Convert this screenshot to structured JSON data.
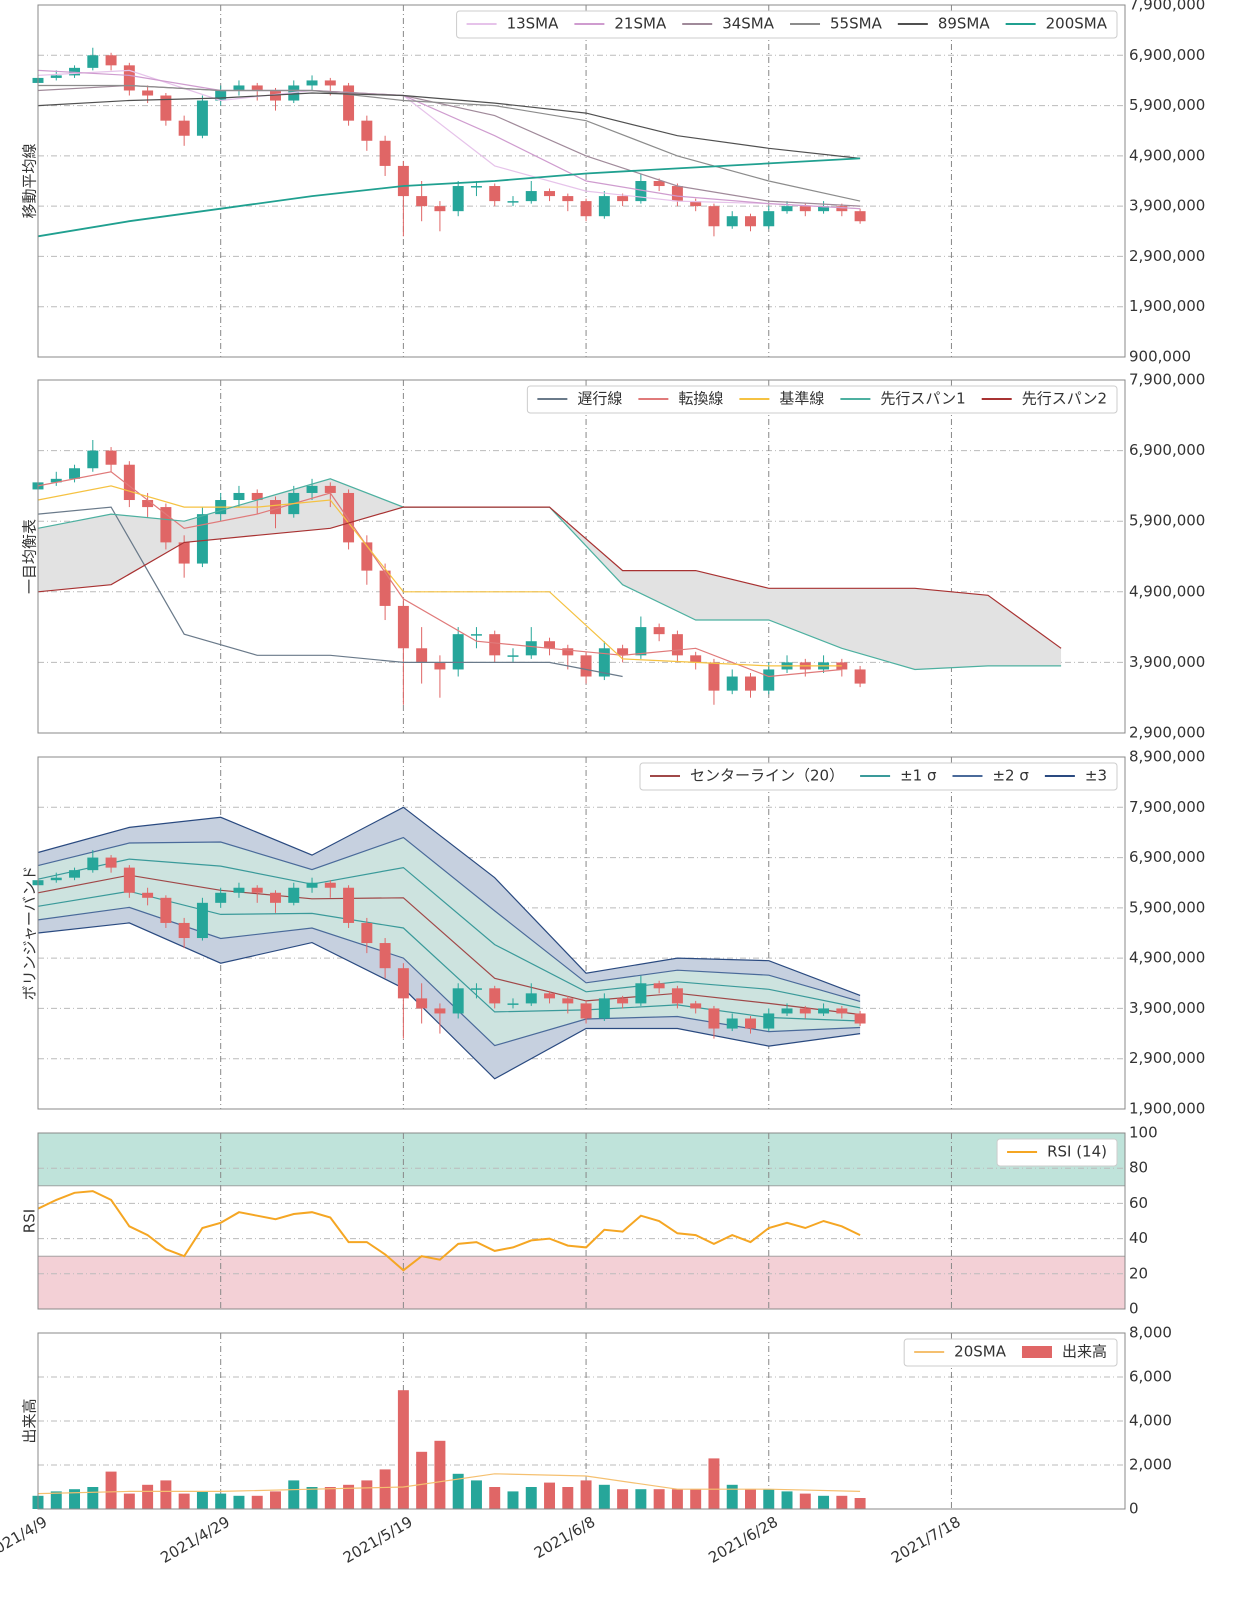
{
  "chart_data": [
    {
      "type": "candlestick",
      "ylabel": "移動平均線",
      "legend": "upper right",
      "ylim": [
        900000,
        7900000
      ],
      "yticks": [
        {
          "value": 900000,
          "label": "900,000"
        },
        {
          "value": 1900000,
          "label": "1,900,000"
        },
        {
          "value": 2900000,
          "label": "2,900,000"
        },
        {
          "value": 3900000,
          "label": "3,900,000"
        },
        {
          "value": 4900000,
          "label": "4,900,000"
        },
        {
          "value": 5900000,
          "label": "5,900,000"
        },
        {
          "value": 6900000,
          "label": "6,900,000"
        },
        {
          "value": 7900000,
          "label": "7,900,000"
        }
      ],
      "candles": {
        "up_color": "#26a69a",
        "down_color": "#e06666",
        "x": [
          0,
          2,
          4,
          6,
          8,
          10,
          12,
          14,
          16,
          18,
          20,
          22,
          24,
          26,
          28,
          30,
          32,
          34,
          36,
          38,
          40,
          42,
          44,
          46,
          48,
          50,
          52,
          54,
          56,
          58,
          60,
          62,
          64,
          66,
          68,
          70,
          72,
          74,
          76,
          78,
          80,
          82,
          84,
          86,
          88,
          90
        ],
        "open": [
          6350000,
          6450000,
          6500000,
          6650000,
          6900000,
          6700000,
          6200000,
          6100000,
          5600000,
          5300000,
          6000000,
          6200000,
          6300000,
          6200000,
          6000000,
          6300000,
          6400000,
          6300000,
          5600000,
          5200000,
          4700000,
          4100000,
          3900000,
          3800000,
          4300000,
          4300000,
          4000000,
          4000000,
          4200000,
          4100000,
          4000000,
          3700000,
          4100000,
          4000000,
          4400000,
          4300000,
          4000000,
          3900000,
          3500000,
          3700000,
          3500000,
          3800000,
          3900000,
          3800000,
          3900000,
          3800000
        ],
        "high": [
          6500000,
          6600000,
          6700000,
          7050000,
          6950000,
          6750000,
          6300000,
          6150000,
          5700000,
          6100000,
          6300000,
          6400000,
          6350000,
          6250000,
          6400000,
          6500000,
          6450000,
          6350000,
          5700000,
          5300000,
          4800000,
          4400000,
          4000000,
          4400000,
          4400000,
          4350000,
          4100000,
          4400000,
          4250000,
          4150000,
          4050000,
          4200000,
          4150000,
          4550000,
          4450000,
          4350000,
          4050000,
          3950000,
          3800000,
          3750000,
          3900000,
          4000000,
          3950000,
          4000000,
          3950000,
          3850000
        ],
        "low": [
          6300000,
          6400000,
          6450000,
          6600000,
          6600000,
          6100000,
          5950000,
          5500000,
          5100000,
          5250000,
          5900000,
          6100000,
          6000000,
          5800000,
          5950000,
          6200000,
          6100000,
          5500000,
          5000000,
          4500000,
          3300000,
          3600000,
          3400000,
          3700000,
          4100000,
          3900000,
          3900000,
          3950000,
          4000000,
          3800000,
          3600000,
          3650000,
          3900000,
          3950000,
          4200000,
          3900000,
          3800000,
          3300000,
          3450000,
          3400000,
          3450000,
          3750000,
          3700000,
          3750000,
          3700000,
          3550000
        ],
        "close": [
          6450000,
          6500000,
          6650000,
          6900000,
          6700000,
          6200000,
          6100000,
          5600000,
          5300000,
          6000000,
          6200000,
          6300000,
          6200000,
          6000000,
          6300000,
          6400000,
          6300000,
          5600000,
          5200000,
          4700000,
          4100000,
          3900000,
          3800000,
          4300000,
          4300000,
          4000000,
          4000000,
          4200000,
          4100000,
          4000000,
          3700000,
          4100000,
          4000000,
          4400000,
          4300000,
          4000000,
          3900000,
          3500000,
          3700000,
          3500000,
          3800000,
          3900000,
          3800000,
          3900000,
          3800000,
          3600000
        ]
      },
      "lines": {
        "x": [
          0,
          10,
          20,
          30,
          40,
          50,
          60,
          70,
          80,
          90
        ],
        "series": [
          {
            "name": "13SMA",
            "color": "#e6c3ea",
            "values": [
              6500000,
              6600000,
              6000000,
              6200000,
              6100000,
              4700000,
              4200000,
              4000000,
              3950000,
              3850000
            ]
          },
          {
            "name": "21SMA",
            "color": "#cf9ccf",
            "values": [
              6600000,
              6500000,
              6200000,
              6200000,
              6100000,
              5300000,
              4400000,
              4100000,
              3950000,
              3850000
            ]
          },
          {
            "name": "34SMA",
            "color": "#a08a9a",
            "values": [
              6200000,
              6300000,
              6200000,
              6200000,
              6100000,
              5700000,
              4900000,
              4300000,
              4000000,
              3900000
            ]
          },
          {
            "name": "55SMA",
            "color": "#8c8c8c",
            "values": [
              6300000,
              6300000,
              6200000,
              6200000,
              6000000,
              5900000,
              5600000,
              4900000,
              4400000,
              4000000
            ]
          },
          {
            "name": "89SMA",
            "color": "#505050",
            "values": [
              5900000,
              6000000,
              6050000,
              6150000,
              6100000,
              5950000,
              5750000,
              5300000,
              5050000,
              4850000
            ]
          },
          {
            "name": "200SMA",
            "color": "#20a090",
            "values": [
              3300000,
              3600000,
              3850000,
              4100000,
              4300000,
              4400000,
              4550000,
              4650000,
              4750000,
              4850000
            ]
          }
        ]
      }
    },
    {
      "type": "candlestick",
      "ylabel": "一目均衡表",
      "legend": "upper right",
      "cloud_color": "#e2e2e2",
      "ylim": [
        2900000,
        7900000
      ],
      "yticks": [
        {
          "value": 2900000,
          "label": "2,900,000"
        },
        {
          "value": 3900000,
          "label": "3,900,000"
        },
        {
          "value": 4900000,
          "label": "4,900,000"
        },
        {
          "value": 5900000,
          "label": "5,900,000"
        },
        {
          "value": 6900000,
          "label": "6,900,000"
        },
        {
          "value": 7900000,
          "label": "7,900,000"
        }
      ],
      "lines": {
        "x": [
          0,
          8,
          16,
          24,
          32,
          40,
          48,
          56,
          64,
          72,
          80,
          88,
          96,
          104,
          112
        ],
        "series": [
          {
            "name": "遅行線",
            "color": "#6a7a8a",
            "values": [
              6000000,
              6100000,
              4300000,
              4000000,
              4000000,
              3900000,
              3900000,
              3900000,
              3700000,
              null,
              null,
              null,
              null,
              null,
              null
            ]
          },
          {
            "name": "転換線",
            "color": "#e07a7a",
            "values": [
              6400000,
              6600000,
              5800000,
              6000000,
              6300000,
              4800000,
              4200000,
              4100000,
              4000000,
              4100000,
              3700000,
              3800000,
              null,
              null,
              null
            ]
          },
          {
            "name": "基準線",
            "color": "#f5c242",
            "values": [
              6200000,
              6400000,
              6100000,
              6100000,
              6200000,
              4900000,
              4900000,
              4900000,
              3950000,
              3900000,
              3850000,
              3850000,
              null,
              null,
              null
            ]
          },
          {
            "name": "先行スパン1",
            "color": "#4db0a0",
            "values": [
              5800000,
              6000000,
              5900000,
              6200000,
              6500000,
              6100000,
              6100000,
              6100000,
              5000000,
              4500000,
              4500000,
              4100000,
              3800000,
              3850000,
              3850000
            ]
          },
          {
            "name": "先行スパン2",
            "color": "#a83232",
            "values": [
              4900000,
              5000000,
              5600000,
              5700000,
              5800000,
              6100000,
              6100000,
              6100000,
              5200000,
              5200000,
              4950000,
              4950000,
              4950000,
              4850000,
              4100000
            ]
          }
        ]
      }
    },
    {
      "type": "bollinger",
      "ylabel": "ボリンジャーバンド",
      "legend": "upper right",
      "ylim": [
        1900000,
        8900000
      ],
      "yticks": [
        {
          "value": 1900000,
          "label": "1,900,000"
        },
        {
          "value": 2900000,
          "label": "2,900,000"
        },
        {
          "value": 3900000,
          "label": "3,900,000"
        },
        {
          "value": 4900000,
          "label": "4,900,000"
        },
        {
          "value": 5900000,
          "label": "5,900,000"
        },
        {
          "value": 6900000,
          "label": "6,900,000"
        },
        {
          "value": 7900000,
          "label": "7,900,000"
        },
        {
          "value": 8900000,
          "label": "8,900,000"
        }
      ],
      "x": [
        0,
        10,
        20,
        30,
        40,
        50,
        60,
        70,
        80,
        90
      ],
      "center": {
        "name": "センターライン（20）",
        "color": "#a04848",
        "values": [
          6200000,
          6550000,
          6250000,
          6080000,
          6100000,
          4500000,
          4050000,
          4200000,
          4000000,
          3780000
        ]
      },
      "bands": [
        {
          "name": "±1 σ",
          "color": "#3a9a9a",
          "upper": [
            6470000,
            6870000,
            6730000,
            6370000,
            6700000,
            5170000,
            4230000,
            4430000,
            4280000,
            3910000
          ],
          "lower": [
            5930000,
            6230000,
            5770000,
            5790000,
            5500000,
            3830000,
            3870000,
            3970000,
            3720000,
            3650000
          ]
        },
        {
          "name": "±2 σ",
          "color": "#4a6a9a",
          "fill": "#cde3df",
          "upper": [
            6740000,
            7190000,
            7210000,
            6660000,
            7300000,
            5840000,
            4410000,
            4660000,
            4560000,
            4040000
          ],
          "lower": [
            5660000,
            5910000,
            5290000,
            5500000,
            4900000,
            3160000,
            3690000,
            3740000,
            3440000,
            3520000
          ]
        },
        {
          "name": "±3",
          "color": "#2a4a80",
          "fill": "#c6d0df",
          "upper": [
            7000000,
            7500000,
            7700000,
            6950000,
            7900000,
            6500000,
            4600000,
            4900000,
            4850000,
            4160000
          ],
          "lower": [
            5400000,
            5600000,
            4800000,
            5210000,
            4300000,
            2500000,
            3500000,
            3500000,
            3150000,
            3400000
          ]
        }
      ]
    },
    {
      "type": "rsi",
      "ylabel": "RSI",
      "legend": "upper right",
      "ylim": [
        0,
        100
      ],
      "yticks": [
        0,
        20,
        40,
        60,
        80,
        100
      ],
      "zones": [
        {
          "from": 70,
          "to": 100,
          "color": "#bfe3da"
        },
        {
          "from": 0,
          "to": 30,
          "color": "#f3d0d6"
        }
      ],
      "series": [
        {
          "name": "RSI (14)",
          "color": "#f5a623",
          "values": [
            57,
            62,
            66,
            67,
            62,
            47,
            42,
            34,
            30,
            46,
            49,
            55,
            53,
            51,
            54,
            55,
            52,
            38,
            38,
            31,
            22,
            30,
            28,
            37,
            38,
            33,
            35,
            39,
            40,
            36,
            35,
            45,
            44,
            53,
            50,
            43,
            42,
            37,
            42,
            38,
            46,
            49,
            46,
            50,
            47,
            42
          ]
        }
      ]
    },
    {
      "type": "volume",
      "ylabel": "出来高",
      "legend": "upper right",
      "ylim": [
        0,
        8000
      ],
      "yticks": [
        0,
        {
          "value": 2000,
          "label": "2,000"
        },
        {
          "value": 4000,
          "label": "4,000"
        },
        {
          "value": 6000,
          "label": "6,000"
        },
        {
          "value": 8000,
          "label": "8,000"
        }
      ],
      "xlim": [
        0,
        119
      ],
      "xticks": [
        {
          "value": 0,
          "label": "2021/4/9"
        },
        {
          "value": 20,
          "label": "2021/4/29"
        },
        {
          "value": 40,
          "label": "2021/5/19"
        },
        {
          "value": 60,
          "label": "2021/6/8"
        },
        {
          "value": 80,
          "label": "2021/6/28"
        },
        {
          "value": 100,
          "label": "2021/7/18"
        }
      ],
      "lines": {
        "x": [
          0,
          10,
          20,
          30,
          40,
          50,
          60,
          70,
          80,
          90
        ],
        "series": [
          {
            "name": "20SMA",
            "color": "#f5c070",
            "values": [
              700,
              800,
              800,
              900,
              1000,
              1600,
              1500,
              900,
              900,
              800
            ]
          }
        ]
      },
      "bars": {
        "name": "出来高",
        "color": "#e06666",
        "values": [
          600,
          800,
          900,
          1000,
          1700,
          700,
          1100,
          1300,
          700,
          800,
          700,
          600,
          600,
          800,
          1300,
          1000,
          1000,
          1100,
          1300,
          1800,
          5400,
          2600,
          3100,
          1600,
          1300,
          1000,
          800,
          1000,
          1200,
          1000,
          1300,
          1100,
          900,
          900,
          900,
          900,
          900,
          2300,
          1100,
          900,
          900,
          800,
          700,
          600,
          600,
          500
        ]
      }
    }
  ]
}
